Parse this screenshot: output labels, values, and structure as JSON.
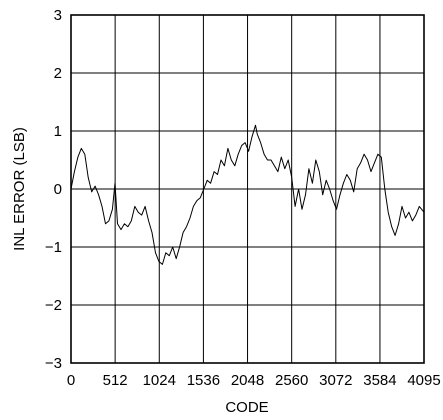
{
  "chart_data": {
    "type": "line",
    "title": "",
    "xlabel": "CODE",
    "ylabel": "INL ERROR (LSB)",
    "xlim": [
      0,
      4095
    ],
    "ylim": [
      -3,
      3
    ],
    "grid": true,
    "x_ticks": [
      {
        "value": 0,
        "label": "0"
      },
      {
        "value": 512,
        "label": "512"
      },
      {
        "value": 1024,
        "label": "1024"
      },
      {
        "value": 1536,
        "label": "1536"
      },
      {
        "value": 2048,
        "label": "2048"
      },
      {
        "value": 2560,
        "label": "2560"
      },
      {
        "value": 3072,
        "label": "3072"
      },
      {
        "value": 3584,
        "label": "3584"
      },
      {
        "value": 4095,
        "label": "4095"
      }
    ],
    "y_ticks": [
      {
        "value": -3,
        "label": "−3"
      },
      {
        "value": -2,
        "label": "−2"
      },
      {
        "value": -1,
        "label": "−1"
      },
      {
        "value": 0,
        "label": "0"
      },
      {
        "value": 1,
        "label": "1"
      },
      {
        "value": 2,
        "label": "2"
      },
      {
        "value": 3,
        "label": "3"
      }
    ],
    "series": [
      {
        "x": [
          0,
          40,
          80,
          120,
          160,
          200,
          240,
          280,
          320,
          360,
          400,
          440,
          480,
          510,
          540,
          580,
          620,
          660,
          700,
          740,
          780,
          820,
          860,
          900,
          940,
          980,
          1020,
          1060,
          1100,
          1140,
          1180,
          1220,
          1260,
          1300,
          1340,
          1380,
          1420,
          1460,
          1500,
          1540,
          1580,
          1620,
          1660,
          1700,
          1740,
          1780,
          1820,
          1860,
          1900,
          1940,
          1980,
          2020,
          2060,
          2100,
          2140,
          2160,
          2200,
          2240,
          2280,
          2320,
          2360,
          2400,
          2440,
          2480,
          2520,
          2560,
          2600,
          2640,
          2680,
          2720,
          2760,
          2800,
          2840,
          2880,
          2920,
          2960,
          3000,
          3040,
          3080,
          3120,
          3160,
          3200,
          3240,
          3280,
          3320,
          3360,
          3400,
          3440,
          3480,
          3520,
          3560,
          3600,
          3640,
          3680,
          3720,
          3760,
          3800,
          3840,
          3880,
          3920,
          3960,
          4000,
          4040,
          4095
        ],
        "values": [
          0.0,
          0.3,
          0.55,
          0.7,
          0.6,
          0.2,
          -0.05,
          0.05,
          -0.1,
          -0.3,
          -0.6,
          -0.55,
          -0.35,
          0.1,
          -0.6,
          -0.7,
          -0.6,
          -0.65,
          -0.55,
          -0.3,
          -0.4,
          -0.45,
          -0.3,
          -0.55,
          -0.75,
          -1.1,
          -1.25,
          -1.3,
          -1.1,
          -1.15,
          -1.0,
          -1.2,
          -1.0,
          -0.75,
          -0.65,
          -0.5,
          -0.3,
          -0.2,
          -0.15,
          0.0,
          0.15,
          0.1,
          0.3,
          0.25,
          0.5,
          0.4,
          0.7,
          0.5,
          0.4,
          0.6,
          0.75,
          0.8,
          0.65,
          0.9,
          1.1,
          0.95,
          0.8,
          0.6,
          0.5,
          0.5,
          0.4,
          0.3,
          0.55,
          0.35,
          0.5,
          0.2,
          -0.3,
          0.0,
          -0.35,
          -0.1,
          0.35,
          0.1,
          0.5,
          0.3,
          -0.1,
          0.15,
          0.0,
          -0.2,
          -0.35,
          -0.1,
          0.1,
          0.25,
          0.15,
          -0.05,
          0.35,
          0.45,
          0.6,
          0.5,
          0.3,
          0.45,
          0.6,
          0.55,
          0.0,
          -0.4,
          -0.65,
          -0.8,
          -0.6,
          -0.3,
          -0.5,
          -0.4,
          -0.55,
          -0.45,
          -0.3,
          -0.4
        ]
      }
    ]
  }
}
